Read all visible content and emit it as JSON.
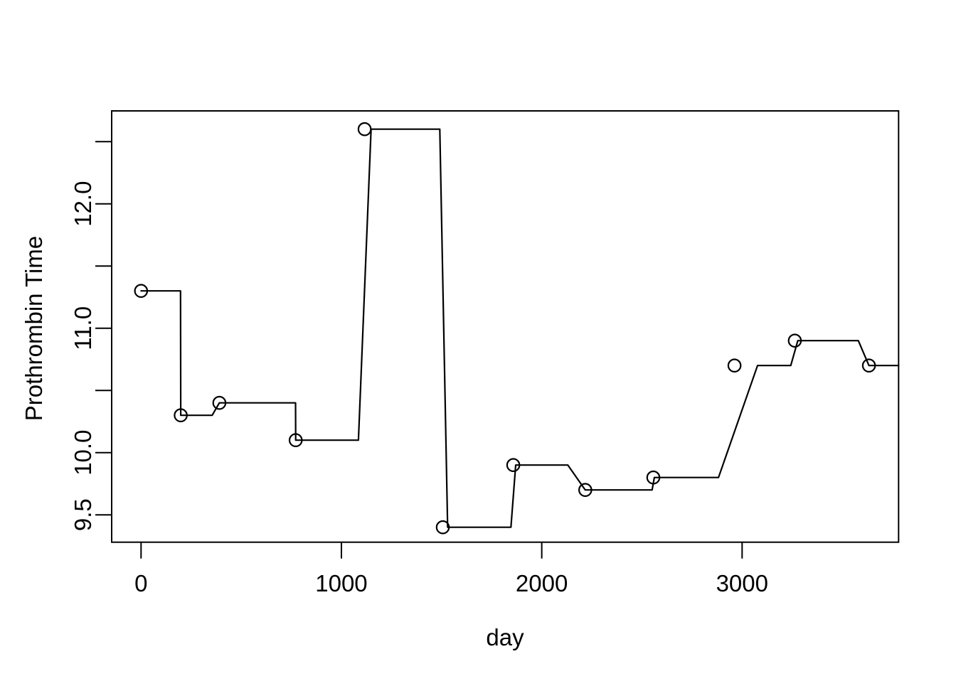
{
  "figure": {
    "background": "#ffffff",
    "foreground": "#000000"
  },
  "chart_data": {
    "type": "line",
    "title": "",
    "xlabel": "day",
    "ylabel": "Prothrombin Time",
    "xlim": [
      -147,
      3781
    ],
    "ylim": [
      9.28,
      12.75
    ],
    "grid": false,
    "legend": "none",
    "marker": "open-circle",
    "line_color": "#000000",
    "x_axis": {
      "ticks": [
        0,
        1000,
        2000,
        3000
      ],
      "tick_labels": [
        "0",
        "1000",
        "2000",
        "3000"
      ]
    },
    "y_axis": {
      "ticks": [
        9.5,
        10.0,
        10.5,
        11.0,
        11.5,
        12.0,
        12.5
      ],
      "labeled_ticks": [
        9.5,
        10.0,
        11.0,
        12.0
      ],
      "tick_labels": [
        "9.5",
        "10.0",
        "11.0",
        "12.0"
      ]
    },
    "series": [
      {
        "name": "prothrombin-measurements",
        "type": "scatter",
        "marker": "open-circle",
        "color": "#000000",
        "points": [
          [
            0,
            11.3
          ],
          [
            198,
            10.3
          ],
          [
            391,
            10.4
          ],
          [
            772,
            10.1
          ],
          [
            1116,
            12.6
          ],
          [
            1506,
            9.4
          ],
          [
            1858,
            9.9
          ],
          [
            2217,
            9.7
          ],
          [
            2557,
            9.8
          ],
          [
            2962,
            10.7
          ],
          [
            3263,
            10.9
          ],
          [
            3633,
            10.7
          ]
        ]
      },
      {
        "name": "prothrombin-step-line",
        "type": "line",
        "color": "#000000",
        "points": [
          [
            0,
            11.3
          ],
          [
            197,
            11.3
          ],
          [
            198,
            10.3
          ],
          [
            355,
            10.3
          ],
          [
            391,
            10.4
          ],
          [
            771,
            10.4
          ],
          [
            772,
            10.1
          ],
          [
            1085,
            10.1
          ],
          [
            1148,
            12.6
          ],
          [
            1491,
            12.6
          ],
          [
            1530,
            9.4
          ],
          [
            1846,
            9.4
          ],
          [
            1870,
            9.9
          ],
          [
            2130,
            9.9
          ],
          [
            2217,
            9.7
          ],
          [
            2551,
            9.7
          ],
          [
            2562,
            9.8
          ],
          [
            2882,
            9.8
          ],
          [
            3077,
            10.7
          ],
          [
            3243,
            10.7
          ],
          [
            3278,
            10.9
          ],
          [
            3580,
            10.9
          ],
          [
            3633,
            10.7
          ],
          [
            3781,
            10.7
          ]
        ]
      }
    ]
  }
}
